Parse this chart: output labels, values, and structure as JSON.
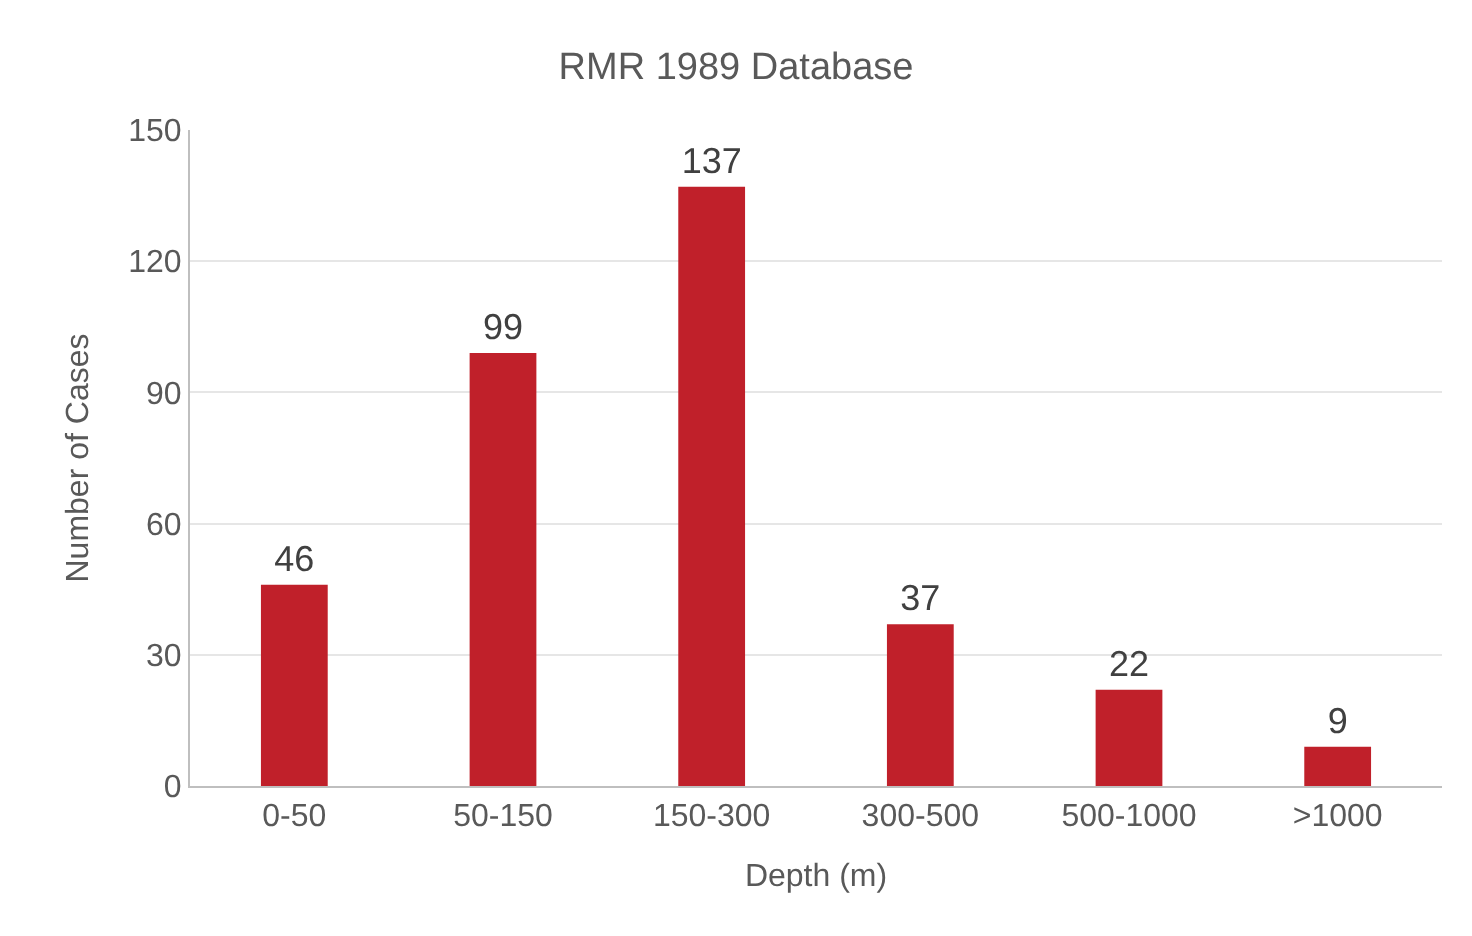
{
  "chart_data": {
    "type": "bar",
    "title": "RMR 1989 Database",
    "xlabel": "Depth (m)",
    "ylabel": "Number of Cases",
    "categories": [
      "0-50",
      "50-150",
      "150-300",
      "300-500",
      "500-1000",
      ">1000"
    ],
    "values": [
      46,
      99,
      137,
      37,
      22,
      9
    ],
    "color": "#c0202a",
    "ylim": [
      0,
      150
    ],
    "yticks": [
      0,
      30,
      60,
      90,
      120,
      150
    ],
    "grid": "y",
    "data_labels": true
  }
}
